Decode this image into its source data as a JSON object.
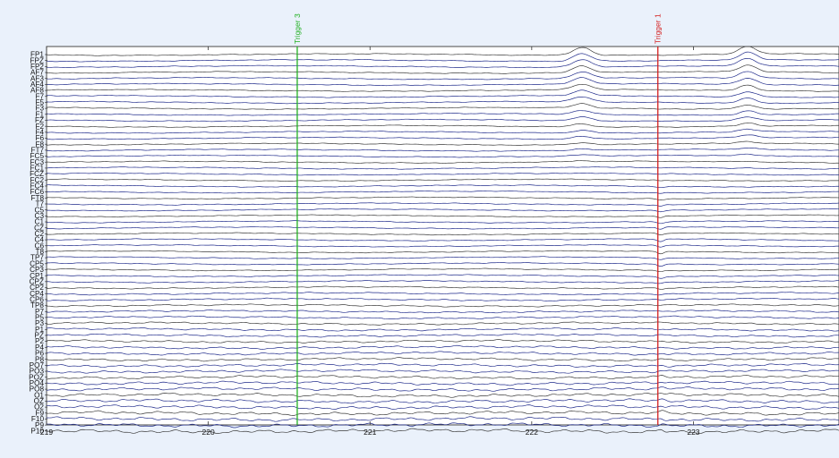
{
  "chart_data": {
    "type": "line",
    "title": "",
    "xlabel": "",
    "ylabel": "",
    "xlim": [
      219,
      223.9
    ],
    "x_ticks": [
      "219",
      "220",
      "221",
      "222",
      "223"
    ],
    "grid": false,
    "trace_color": "#1f2a8a",
    "channels": [
      "FP1",
      "FPZ",
      "FP2",
      "AF7",
      "AF3",
      "AF4",
      "AF8",
      "F7",
      "F5",
      "F3",
      "F1",
      "FZ",
      "F2",
      "F4",
      "F6",
      "F8",
      "FT7",
      "FC5",
      "FC3",
      "FC1",
      "FCZ",
      "FC2",
      "FC4",
      "FC6",
      "FT8",
      "T7",
      "C5",
      "C3",
      "C1",
      "CZ",
      "C2",
      "C4",
      "C6",
      "T8",
      "TP7",
      "CP5",
      "CP3",
      "CP1",
      "CPZ",
      "CP2",
      "CP4",
      "CP6",
      "TP8",
      "P7",
      "P5",
      "P3",
      "P1",
      "PZ",
      "P2",
      "P4",
      "P6",
      "P8",
      "PO7",
      "PO3",
      "POZ",
      "PO4",
      "PO8",
      "O1",
      "OZ",
      "O2",
      "F9",
      "F10",
      "P9",
      "P10"
    ],
    "events": [
      {
        "label": "Trigger 3",
        "x": 220.55,
        "color": "#22b022"
      },
      {
        "label": "Trigger 1",
        "x": 222.78,
        "color": "#d42020"
      }
    ]
  }
}
